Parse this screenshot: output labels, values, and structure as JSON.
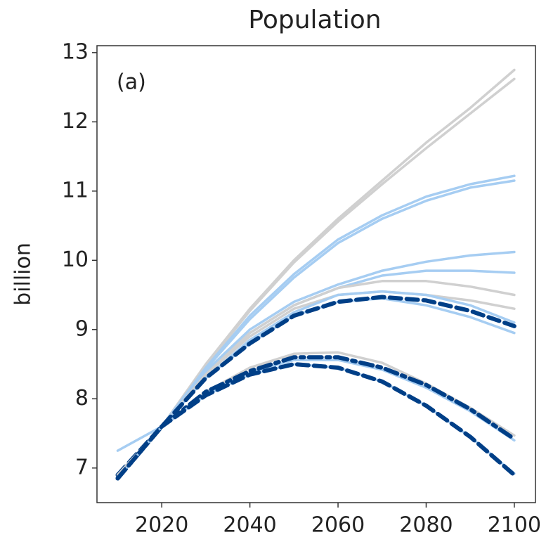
{
  "chart_data": {
    "type": "line",
    "title": "Population",
    "ylabel": "billion",
    "annotation": "(a)",
    "x": [
      2010,
      2020,
      2030,
      2040,
      2050,
      2060,
      2070,
      2080,
      2090,
      2100
    ],
    "xlim": [
      2005.3,
      2104.8
    ],
    "ylim": [
      6.5,
      13.1
    ],
    "xticks": [
      2020,
      2040,
      2060,
      2080,
      2100
    ],
    "yticks": [
      7,
      8,
      9,
      10,
      11,
      12,
      13
    ],
    "grid": false,
    "series": [
      {
        "color": "#d0d0d0",
        "style": "solid",
        "values": [
          6.9,
          7.6,
          8.5,
          9.3,
          10.0,
          10.6,
          11.15,
          11.7,
          12.2,
          12.75
        ]
      },
      {
        "color": "#d0d0d0",
        "style": "solid",
        "values": [
          6.9,
          7.6,
          8.48,
          9.27,
          9.97,
          10.56,
          11.1,
          11.62,
          12.12,
          12.62
        ]
      },
      {
        "color": "#a6cdf2",
        "style": "solid",
        "values": [
          6.9,
          7.6,
          8.45,
          9.2,
          9.8,
          10.3,
          10.65,
          10.92,
          11.1,
          11.22
        ]
      },
      {
        "color": "#a6cdf2",
        "style": "solid",
        "values": [
          6.9,
          7.6,
          8.43,
          9.15,
          9.75,
          10.25,
          10.6,
          10.86,
          11.05,
          11.15
        ]
      },
      {
        "color": "#a6cdf2",
        "style": "solid",
        "values": [
          6.9,
          7.6,
          8.4,
          9.0,
          9.4,
          9.65,
          9.85,
          9.98,
          10.07,
          10.12
        ]
      },
      {
        "color": "#a6cdf2",
        "style": "solid",
        "values": [
          6.9,
          7.6,
          8.38,
          8.95,
          9.35,
          9.6,
          9.78,
          9.85,
          9.85,
          9.82
        ]
      },
      {
        "color": "#d0d0d0",
        "style": "solid",
        "values": [
          6.9,
          7.6,
          8.35,
          8.95,
          9.35,
          9.6,
          9.7,
          9.7,
          9.62,
          9.5
        ]
      },
      {
        "color": "#d0d0d0",
        "style": "solid",
        "values": [
          6.9,
          7.6,
          8.35,
          8.9,
          9.3,
          9.5,
          9.55,
          9.5,
          9.42,
          9.3
        ]
      },
      {
        "color": "#a6cdf2",
        "style": "solid",
        "values": [
          7.25,
          7.6,
          8.3,
          8.85,
          9.25,
          9.5,
          9.55,
          9.5,
          9.35,
          9.1
        ]
      },
      {
        "color": "#a6cdf2",
        "style": "solid",
        "values": [
          6.9,
          7.6,
          8.3,
          8.8,
          9.2,
          9.4,
          9.45,
          9.35,
          9.18,
          8.95
        ]
      },
      {
        "color": "#003f87",
        "style": "dashed",
        "values": [
          6.9,
          7.6,
          8.3,
          8.8,
          9.2,
          9.4,
          9.47,
          9.42,
          9.27,
          9.05
        ]
      },
      {
        "color": "#d0d0d0",
        "style": "solid",
        "values": [
          6.9,
          7.6,
          8.1,
          8.45,
          8.65,
          8.67,
          8.52,
          8.22,
          7.87,
          7.47
        ]
      },
      {
        "color": "#a6cdf2",
        "style": "solid",
        "values": [
          6.85,
          7.6,
          8.08,
          8.38,
          8.56,
          8.56,
          8.42,
          8.16,
          7.82,
          7.4
        ]
      },
      {
        "color": "#003f87",
        "style": "dashdot",
        "values": [
          6.85,
          7.6,
          8.1,
          8.4,
          8.6,
          8.6,
          8.45,
          8.2,
          7.85,
          7.42
        ]
      },
      {
        "color": "#a6cdf2",
        "style": "solid",
        "values": [
          6.85,
          7.6,
          8.05,
          8.35,
          8.5,
          8.45,
          8.25,
          7.9,
          7.45,
          6.92
        ]
      },
      {
        "color": "#003f87",
        "style": "dashed",
        "values": [
          6.85,
          7.6,
          8.05,
          8.35,
          8.5,
          8.45,
          8.25,
          7.9,
          7.45,
          6.9
        ]
      }
    ]
  }
}
